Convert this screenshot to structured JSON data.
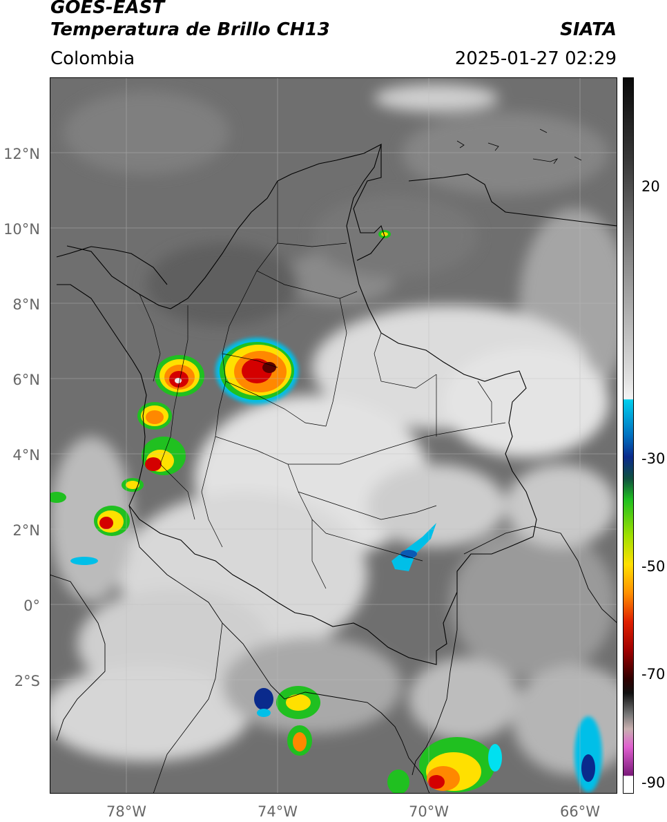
{
  "header": {
    "satellite": "GOES-EAST",
    "product": "Temperatura de Brillo CH13",
    "region": "Colombia",
    "agency": "SIATA",
    "datetime": "2025-01-27 02:29"
  },
  "axes": {
    "lat_ticks": [
      "12°N",
      "10°N",
      "8°N",
      "6°N",
      "4°N",
      "2°N",
      "0°",
      "2°S"
    ],
    "lon_ticks": [
      "78°W",
      "74°W",
      "70°W",
      "66°W"
    ]
  },
  "colorbar": {
    "ticks": [
      "20",
      "-30",
      "-50",
      "-70",
      "-90"
    ],
    "colors": {
      "gray_dark": "#111111",
      "gray_mid": "#8c8c8c",
      "gray_light": "#f2f2f2",
      "cyan": "#00bfe8",
      "blue_dark": "#0a2a8c",
      "green": "#20c020",
      "yellow": "#ffe000",
      "orange": "#ff8800",
      "red": "#d40000",
      "dark_red": "#5a0000",
      "pink": "#e060d0",
      "purple": "#7a1a7a"
    }
  }
}
